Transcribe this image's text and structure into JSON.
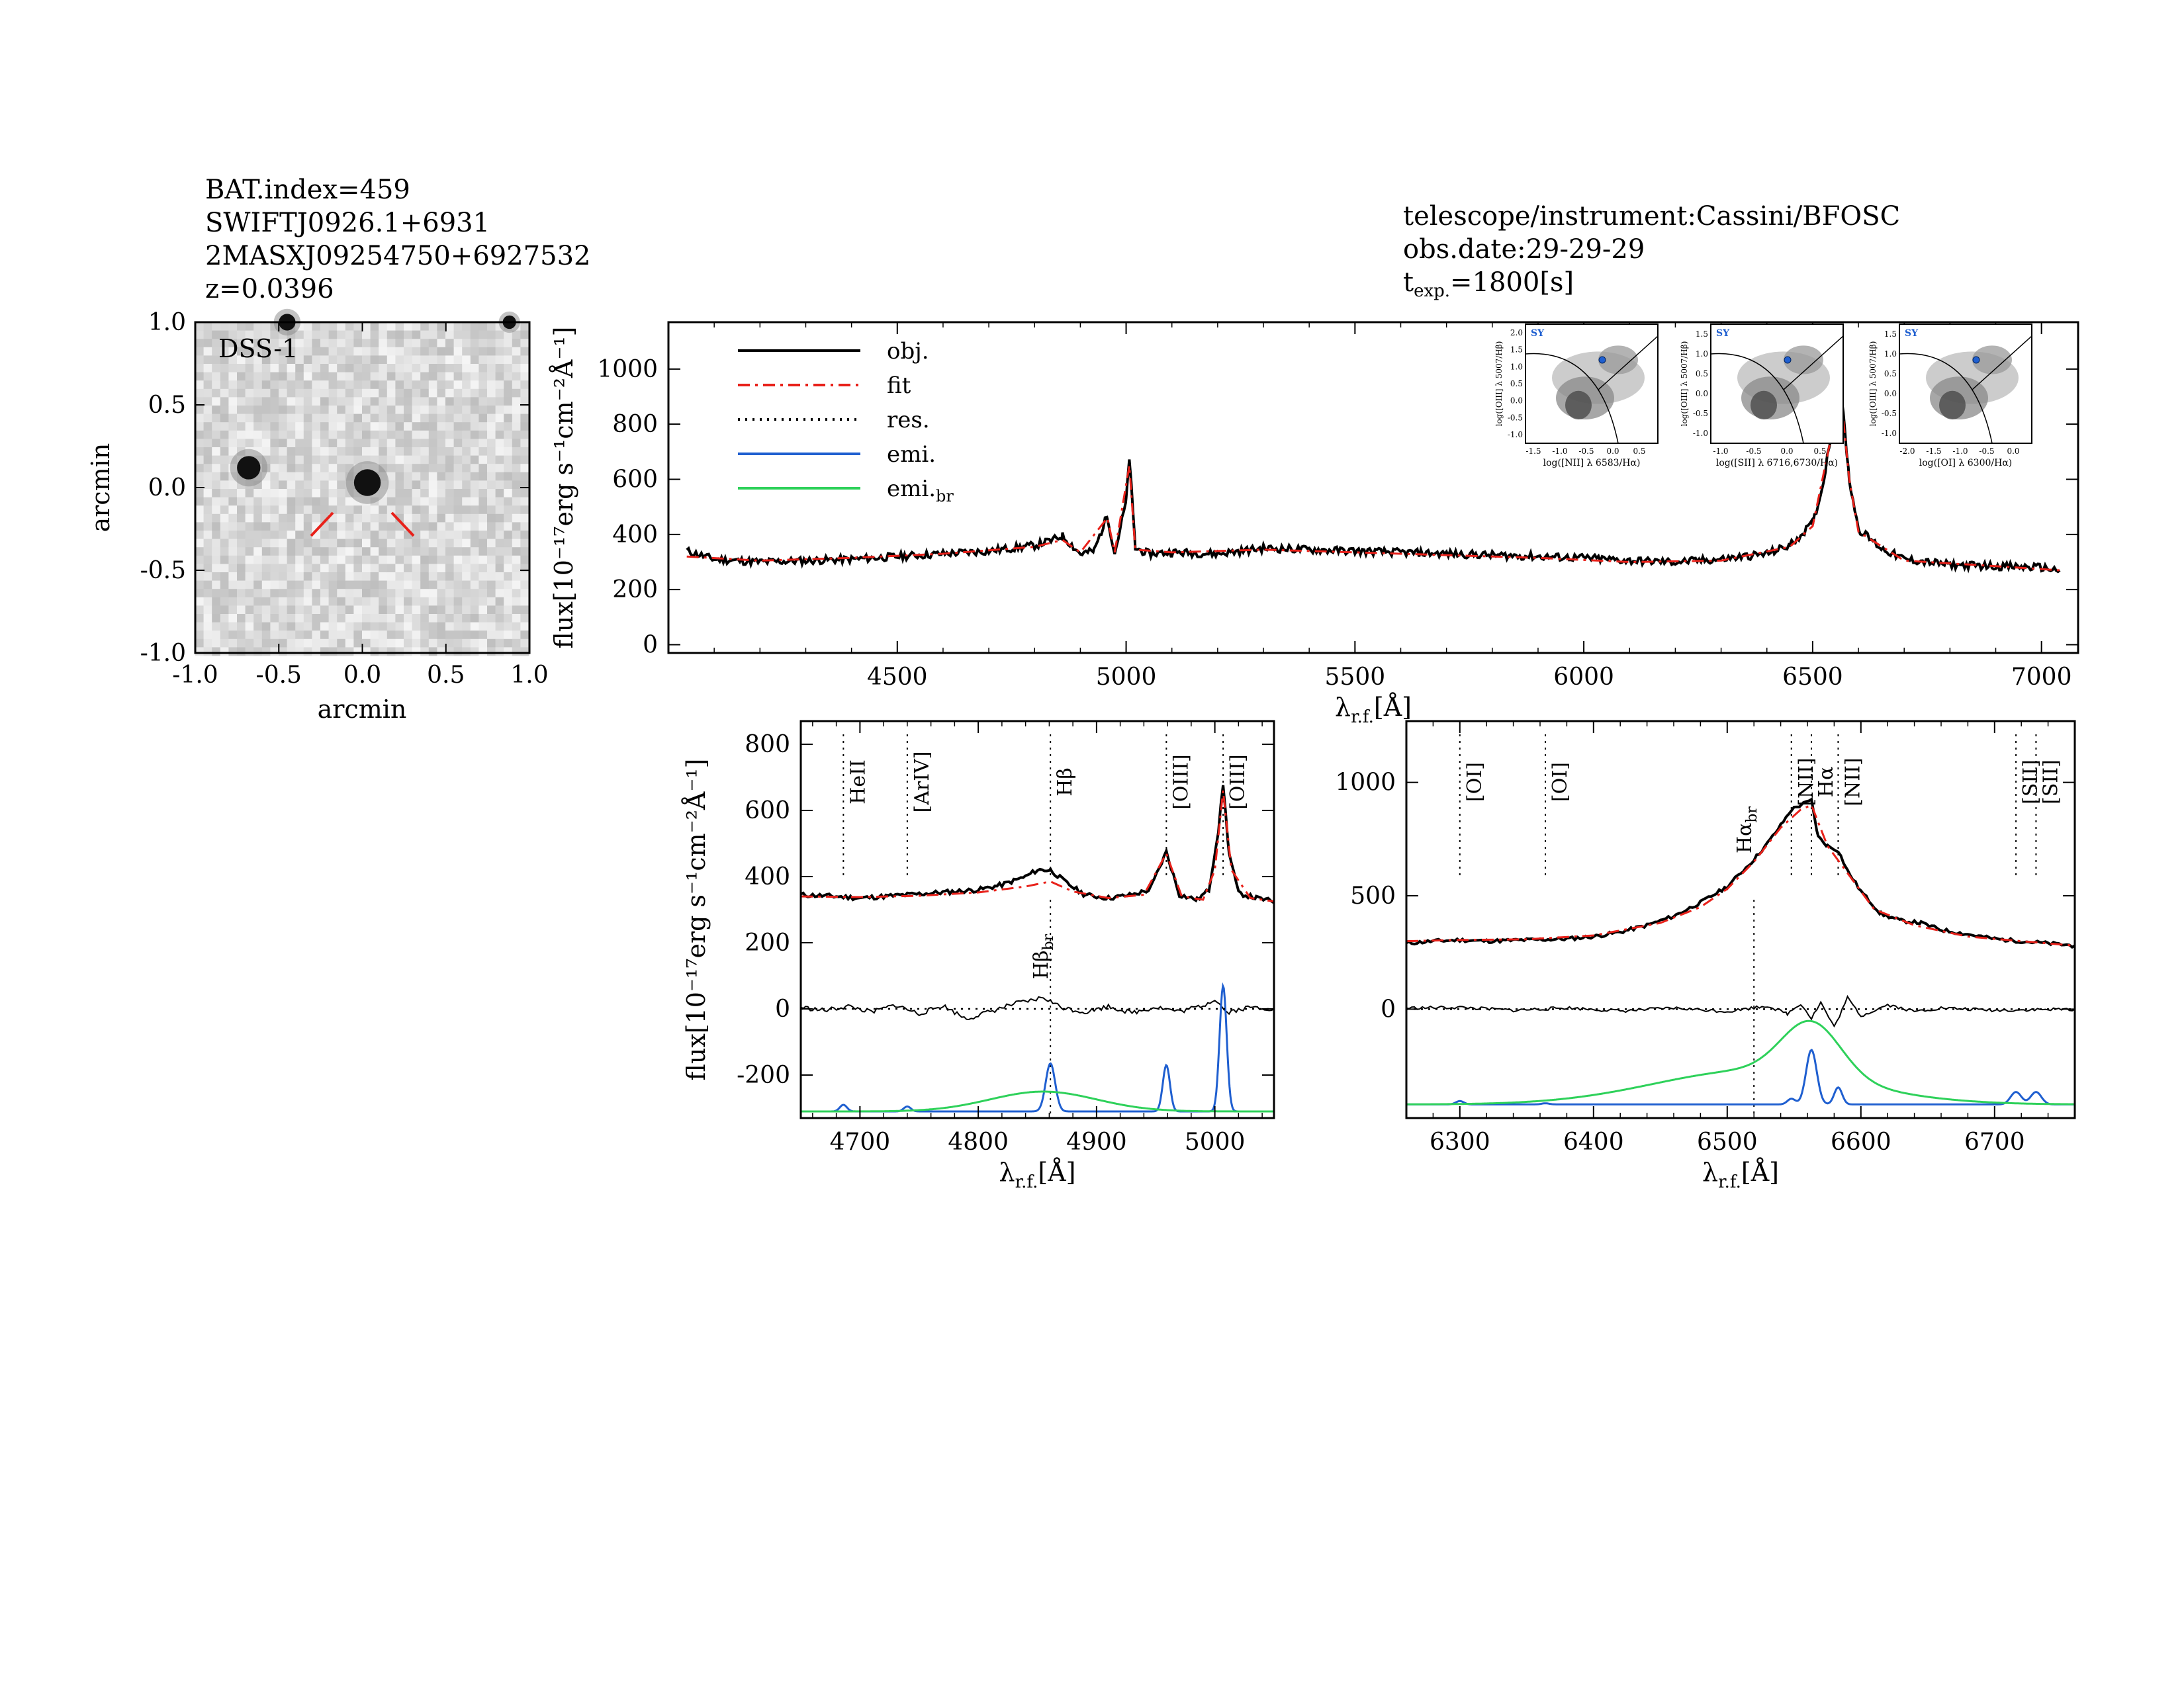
{
  "header_left": [
    "BAT.index=459",
    "SWIFTJ0926.1+6931",
    "2MASXJ09254750+6927532",
    "z=0.0396"
  ],
  "header_right": {
    "line1": "telescope/instrument:Cassini/BFOSC",
    "line2": "obs.date:29-29-29",
    "t": "t",
    "t_sub": "exp.",
    "t_val": "=1800[s]"
  },
  "colors": {
    "obj": "#000000",
    "fit": "#e8211a",
    "res": "#000000",
    "emi": "#1f5fd0",
    "emi_br": "#2ed15a"
  },
  "chart_data": [
    {
      "type": "heatmap",
      "id": "dss-cutout",
      "label": "DSS-1",
      "xlabel": "arcmin",
      "ylabel": "arcmin",
      "xlim": [
        -1.0,
        1.0
      ],
      "ylim": [
        -1.0,
        1.0
      ],
      "xticks": [
        "-1.0",
        "-0.5",
        "0.0",
        "0.5",
        "1.0"
      ],
      "yticks": [
        "1.0",
        "0.5",
        "0.0",
        "-0.5",
        "-1.0"
      ],
      "sources": [
        {
          "x": 0.03,
          "y": 0.03,
          "r": 0.08
        },
        {
          "x": -0.68,
          "y": 0.12,
          "r": 0.07
        },
        {
          "x": -0.45,
          "y": 1.0,
          "r": 0.05
        },
        {
          "x": 0.88,
          "y": 1.0,
          "r": 0.04
        }
      ]
    },
    {
      "type": "line",
      "id": "full-spectrum",
      "xlabel": "λ",
      "xlabel_sub": "r.f.",
      "xlabel_unit": "[Å]",
      "ylabel": "flux[10⁻¹⁷erg s⁻¹cm⁻²Å⁻¹]",
      "xlim": [
        4000,
        7080
      ],
      "ylim": [
        -30,
        1170
      ],
      "xticks": [
        4500,
        5000,
        5500,
        6000,
        6500,
        7000
      ],
      "yticks": [
        0,
        200,
        400,
        600,
        800,
        1000
      ],
      "legend_position": "top-left",
      "legend": [
        "obj.",
        "fit",
        "res.",
        "emi.",
        "emi.",
        "br"
      ],
      "series": [
        {
          "name": "obj.",
          "x": [
            4040,
            4100,
            4200,
            4300,
            4400,
            4500,
            4600,
            4700,
            4800,
            4840,
            4861,
            4900,
            4930,
            4959,
            4975,
            5000,
            5007,
            5020,
            5050,
            5100,
            5200,
            5300,
            5400,
            5500,
            5600,
            5700,
            5800,
            5900,
            6000,
            6100,
            6200,
            6300,
            6400,
            6450,
            6500,
            6520,
            6540,
            6555,
            6563,
            6570,
            6580,
            6600,
            6650,
            6700,
            6800,
            6900,
            7000,
            7040
          ],
          "y": [
            340,
            310,
            300,
            305,
            310,
            320,
            330,
            340,
            360,
            380,
            395,
            330,
            340,
            470,
            330,
            520,
            680,
            350,
            330,
            335,
            330,
            350,
            345,
            340,
            335,
            330,
            325,
            320,
            315,
            305,
            300,
            310,
            330,
            360,
            440,
            560,
            760,
            880,
            900,
            780,
            600,
            420,
            350,
            310,
            290,
            285,
            280,
            270
          ]
        },
        {
          "name": "fit",
          "x": [
            4040,
            4200,
            4400,
            4600,
            4800,
            4861,
            4900,
            4959,
            4975,
            5007,
            5020,
            5100,
            5300,
            5500,
            5700,
            5900,
            6100,
            6300,
            6450,
            6500,
            6540,
            6563,
            6580,
            6600,
            6700,
            6900,
            7040
          ],
          "y": [
            320,
            305,
            315,
            330,
            355,
            380,
            335,
            460,
            335,
            650,
            345,
            335,
            345,
            335,
            325,
            315,
            300,
            305,
            355,
            430,
            750,
            880,
            600,
            410,
            305,
            285,
            270
          ]
        }
      ],
      "diagnostic_insets": [
        {
          "id": "bpt-nii",
          "label": "SY",
          "xlabel": "log([NII] λ 6583/Hα)",
          "ylabel": "log([OIII] λ 5007/Hβ)",
          "xticks": [
            "-1.5",
            "-1.0",
            "-0.5",
            "0.0",
            "0.5"
          ],
          "yticks": [
            "2.0",
            "1.5",
            "1.0",
            "0.5",
            "0.0",
            "-0.5",
            "-1.0"
          ],
          "point": [
            -0.28,
            0.75
          ]
        },
        {
          "id": "bpt-sii",
          "label": "SY",
          "xlabel": "log([SII] λ 6716,6730/Hα)",
          "ylabel": "log([OIII] λ 5007/Hβ)",
          "xticks": [
            "-1.0",
            "-0.5",
            "0.0",
            "0.5"
          ],
          "yticks": [
            "1.5",
            "1.0",
            "0.5",
            "0.0",
            "-0.5",
            "-1.0"
          ],
          "point": [
            -0.35,
            0.75
          ]
        },
        {
          "id": "bpt-oi",
          "label": "SY",
          "xlabel": "log([OI] λ 6300/Hα)",
          "ylabel": "log([OIII] λ 5007/Hβ)",
          "xticks": [
            "-2.0",
            "-1.5",
            "-1.0",
            "-0.5",
            "0.0"
          ],
          "yticks": [
            "1.5",
            "1.0",
            "0.5",
            "0.0",
            "-0.5",
            "-1.0"
          ],
          "point": [
            -0.95,
            0.75
          ]
        }
      ]
    },
    {
      "type": "line",
      "id": "hbeta-zoom",
      "xlabel": "λ",
      "xlabel_sub": "r.f.",
      "xlabel_unit": "[Å]",
      "ylabel": "flux[10⁻¹⁷erg s⁻¹cm⁻²Å⁻¹]",
      "xlim": [
        4650,
        5050
      ],
      "ylim": [
        -330,
        870
      ],
      "xticks": [
        4700,
        4800,
        4900,
        5000
      ],
      "yticks": [
        -200,
        0,
        200,
        400,
        600,
        800
      ],
      "line_markers": [
        {
          "x": 4686,
          "label": "HeII"
        },
        {
          "x": 4740,
          "label": "[ArIV]"
        },
        {
          "x": 4861,
          "label": "Hβ"
        },
        {
          "x": 4959,
          "label": "[OIII]"
        },
        {
          "x": 5007,
          "label": "[OIII]"
        }
      ],
      "broad_marker": {
        "x": 4861,
        "label": "Hβ",
        "sub": "br"
      },
      "series": [
        {
          "name": "obj.",
          "x": [
            4650,
            4680,
            4700,
            4720,
            4740,
            4760,
            4780,
            4800,
            4820,
            4840,
            4850,
            4861,
            4875,
            4890,
            4910,
            4930,
            4945,
            4959,
            4970,
            4985,
            4995,
            5003,
            5007,
            5012,
            5020,
            5035,
            5050
          ],
          "y": [
            345,
            340,
            335,
            340,
            345,
            350,
            355,
            360,
            375,
            400,
            420,
            420,
            380,
            345,
            335,
            345,
            360,
            475,
            345,
            330,
            360,
            540,
            680,
            470,
            350,
            335,
            325
          ]
        },
        {
          "name": "fit",
          "x": [
            4650,
            4700,
            4750,
            4800,
            4840,
            4861,
            4880,
            4910,
            4940,
            4959,
            4972,
            4990,
            5000,
            5007,
            5014,
            5030,
            5050
          ],
          "y": [
            340,
            338,
            342,
            352,
            370,
            385,
            355,
            335,
            345,
            470,
            340,
            330,
            420,
            660,
            420,
            335,
            325
          ]
        },
        {
          "name": "res.",
          "x": [
            4650,
            4670,
            4690,
            4710,
            4730,
            4750,
            4770,
            4790,
            4810,
            4830,
            4845,
            4855,
            4870,
            4890,
            4910,
            4930,
            4950,
            4970,
            4990,
            5000,
            5010,
            5030,
            5050
          ],
          "y": [
            5,
            -5,
            8,
            -10,
            12,
            -15,
            10,
            -30,
            -8,
            15,
            25,
            35,
            5,
            -10,
            8,
            -12,
            6,
            -8,
            10,
            30,
            -10,
            5,
            0
          ]
        },
        {
          "name": "emi.",
          "components": [
            {
              "center": 4686,
              "sigma": 3,
              "amp": 20
            },
            {
              "center": 4740,
              "sigma": 3,
              "amp": 15
            },
            {
              "center": 4861,
              "sigma": 4,
              "amp": 145
            },
            {
              "center": 4959,
              "sigma": 3,
              "amp": 140
            },
            {
              "center": 5007,
              "sigma": 3,
              "amp": 380
            }
          ],
          "baseline": -310
        },
        {
          "name": "emi.br",
          "components": [
            {
              "center": 4855,
              "sigma": 45,
              "amp": 60
            }
          ],
          "baseline": -310
        }
      ]
    },
    {
      "type": "line",
      "id": "halpha-zoom",
      "xlabel": "λ",
      "xlabel_sub": "r.f.",
      "xlabel_unit": "[Å]",
      "ylabel": "",
      "xlim": [
        6260,
        6760
      ],
      "ylim": [
        -480,
        1270
      ],
      "xticks": [
        6300,
        6400,
        6500,
        6600,
        6700
      ],
      "yticks": [
        0,
        500,
        1000
      ],
      "line_markers": [
        {
          "x": 6300,
          "label": "[OI]"
        },
        {
          "x": 6364,
          "label": "[OI]"
        },
        {
          "x": 6548,
          "label": "[NII]"
        },
        {
          "x": 6563,
          "label": "Hα"
        },
        {
          "x": 6583,
          "label": "[NII]"
        },
        {
          "x": 6716,
          "label": "[SII]"
        },
        {
          "x": 6731,
          "label": "[SII]"
        }
      ],
      "broad_marker": {
        "x": 6520,
        "label": "Hα",
        "sub": "br"
      },
      "series": [
        {
          "name": "obj.",
          "x": [
            6260,
            6280,
            6300,
            6320,
            6350,
            6380,
            6400,
            6420,
            6440,
            6460,
            6480,
            6500,
            6510,
            6520,
            6530,
            6540,
            6548,
            6555,
            6563,
            6568,
            6575,
            6583,
            6590,
            6600,
            6615,
            6630,
            6645,
            6660,
            6680,
            6700,
            6720,
            6740,
            6760
          ],
          "y": [
            290,
            300,
            305,
            300,
            305,
            310,
            320,
            340,
            370,
            410,
            470,
            540,
            600,
            660,
            730,
            810,
            880,
            900,
            920,
            760,
            720,
            700,
            610,
            520,
            420,
            390,
            380,
            350,
            330,
            310,
            300,
            290,
            280
          ]
        },
        {
          "name": "fit",
          "x": [
            6260,
            6300,
            6350,
            6400,
            6450,
            6480,
            6500,
            6520,
            6540,
            6555,
            6563,
            6575,
            6590,
            6610,
            6640,
            6680,
            6720,
            6760
          ],
          "y": [
            300,
            305,
            308,
            325,
            380,
            450,
            530,
            650,
            800,
            880,
            900,
            720,
            600,
            440,
            370,
            320,
            300,
            280
          ]
        },
        {
          "name": "res.",
          "x": [
            6260,
            6300,
            6340,
            6380,
            6420,
            6460,
            6500,
            6530,
            6545,
            6555,
            6563,
            6570,
            6580,
            6590,
            6600,
            6620,
            6640,
            6660,
            6700,
            6760
          ],
          "y": [
            5,
            8,
            -5,
            6,
            -8,
            5,
            -10,
            15,
            -20,
            25,
            -40,
            30,
            -80,
            50,
            -30,
            20,
            -10,
            5,
            -5,
            0
          ]
        },
        {
          "name": "emi.",
          "components": [
            {
              "center": 6300,
              "sigma": 3,
              "amp": 15
            },
            {
              "center": 6364,
              "sigma": 3,
              "amp": 5
            },
            {
              "center": 6548,
              "sigma": 3,
              "amp": 25
            },
            {
              "center": 6563,
              "sigma": 4,
              "amp": 240
            },
            {
              "center": 6583,
              "sigma": 3,
              "amp": 75
            },
            {
              "center": 6716,
              "sigma": 4,
              "amp": 55
            },
            {
              "center": 6731,
              "sigma": 4,
              "amp": 55
            }
          ],
          "baseline": -420
        },
        {
          "name": "emi.br",
          "components": [
            {
              "center": 6520,
              "sigma": 75,
              "amp": 150
            },
            {
              "center": 6563,
              "sigma": 22,
              "amp": 240
            }
          ],
          "baseline": -420
        }
      ]
    }
  ]
}
